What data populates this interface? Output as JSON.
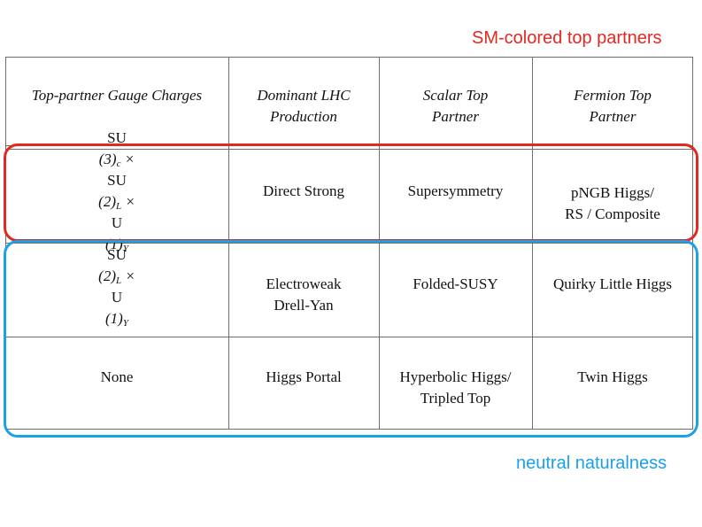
{
  "annotations": {
    "red_label": "SM-colored top partners",
    "blue_label": "neutral naturalness",
    "red_color": "#e5271f",
    "blue_color": "#1ba0ea"
  },
  "table": {
    "headers": [
      "Top-partner Gauge Charges",
      "Dominant LHC\nProduction",
      "Scalar Top\nPartner",
      "Fermion Top\nPartner"
    ],
    "rows": [
      {
        "gauge_charges": "SU(3)c × SU(2)L × U(1)Y",
        "production": "Direct Strong",
        "scalar_partner": "Supersymmetry",
        "fermion_partner": "pNGB Higgs/\nRS / Composite"
      },
      {
        "gauge_charges": "SU(2)L × U(1)Y",
        "production": "Electroweak\nDrell-Yan",
        "scalar_partner": "Folded-SUSY",
        "fermion_partner": "Quirky Little Higgs"
      },
      {
        "gauge_charges": "None",
        "production": "Higgs Portal",
        "scalar_partner": "Hyperbolic Higgs/\nTripled Top",
        "fermion_partner": "Twin Higgs"
      }
    ]
  }
}
